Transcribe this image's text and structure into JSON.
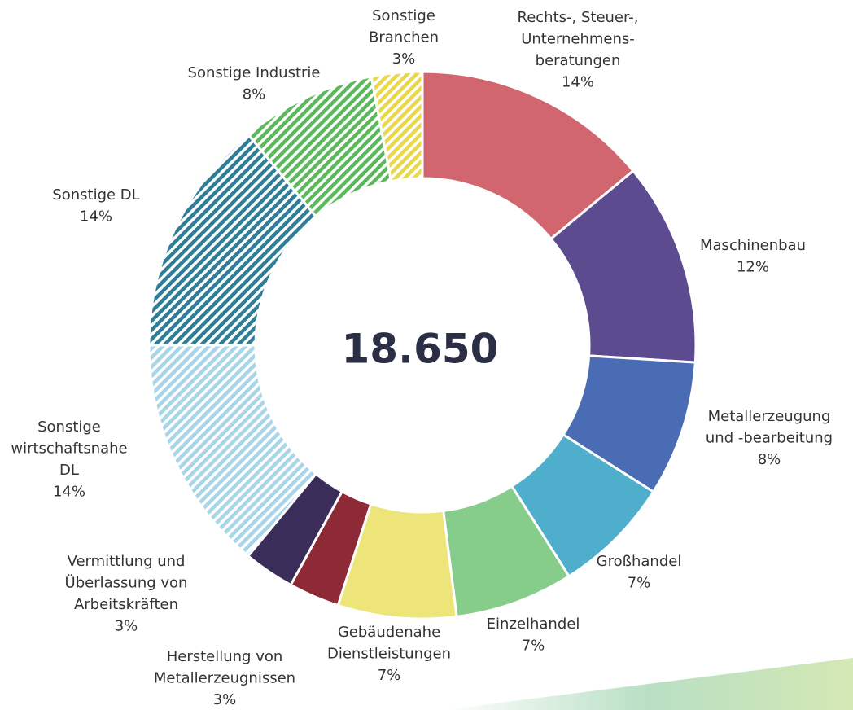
{
  "chart_data": {
    "type": "donut",
    "center_label": "18.650",
    "categories": [
      [
        "Rechts-, Steuer-,",
        "Unternehmens-",
        "beratungen"
      ],
      [
        "Maschinenbau"
      ],
      [
        "Metallerzeugung",
        "und -bearbeitung"
      ],
      [
        "Großhandel"
      ],
      [
        "Einzelhandel"
      ],
      [
        "Gebäudenahe",
        "Dienstleistungen"
      ],
      [
        "Herstellung von",
        "Metallerzeugnissen"
      ],
      [
        "Vermittlung und",
        "Überlassung von",
        "Arbeitskräften"
      ],
      [
        "Sonstige",
        "wirtschaftsnahe",
        "DL"
      ],
      [
        "Sonstige DL"
      ],
      [
        "Sonstige Industrie"
      ],
      [
        "Sonstige",
        "Branchen"
      ]
    ],
    "values": [
      14,
      12,
      8,
      7,
      7,
      7,
      3,
      3,
      14,
      14,
      8,
      3
    ],
    "value_labels": [
      "14%",
      "12%",
      "8%",
      "7%",
      "7%",
      "7%",
      "3%",
      "3%",
      "14%",
      "14%",
      "8%",
      "3%"
    ],
    "colors": [
      "#d2666f",
      "#5c4b8f",
      "#4a6cb4",
      "#4eaecb",
      "#86cc8a",
      "#ede57a",
      "#8d2a36",
      "#3a2d5a",
      "#a8d5e8",
      "#2f7e96",
      "#5cb85c",
      "#e8d84a"
    ],
    "hatched": [
      false,
      false,
      false,
      false,
      false,
      false,
      false,
      false,
      true,
      true,
      true,
      true
    ]
  }
}
